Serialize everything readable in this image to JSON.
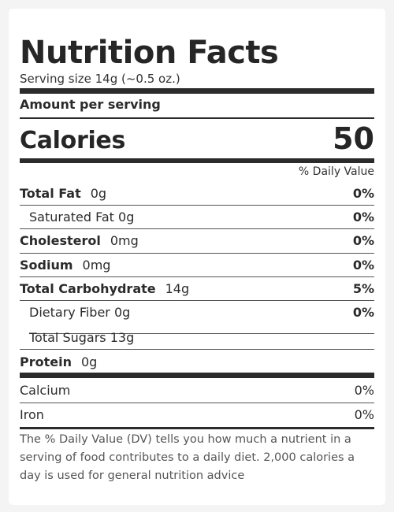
{
  "label": {
    "title": "Nutrition Facts",
    "serving_size": "Serving size 14g (~0.5 oz.)",
    "amount_per_serving": "Amount per serving",
    "calories_label": "Calories",
    "calories_value": "50",
    "dv_header": "% Daily Value",
    "nutrients": [
      {
        "name": "Total Fat",
        "amount": "0g",
        "dv": "0%"
      },
      {
        "name": "Saturated Fat 0g",
        "amount": "",
        "dv": "0%"
      },
      {
        "name": "Cholesterol",
        "amount": "0mg",
        "dv": "0%"
      },
      {
        "name": "Sodium",
        "amount": "0mg",
        "dv": "0%"
      },
      {
        "name": "Total Carbohydrate",
        "amount": "14g",
        "dv": "5%"
      },
      {
        "name": "Dietary Fiber 0g",
        "amount": "",
        "dv": "0%"
      },
      {
        "name": "Total Sugars 13g",
        "amount": "",
        "dv": ""
      },
      {
        "name": "Protein",
        "amount": "0g",
        "dv": ""
      }
    ],
    "minerals": [
      {
        "name": "Calcium",
        "dv": "0%"
      },
      {
        "name": "Iron",
        "dv": "0%"
      }
    ],
    "footnote": "The % Daily Value (DV) tells you how much a nutrient in a serving of food contributes to a daily diet. 2,000 calories a day is used for general nutrition advice"
  }
}
